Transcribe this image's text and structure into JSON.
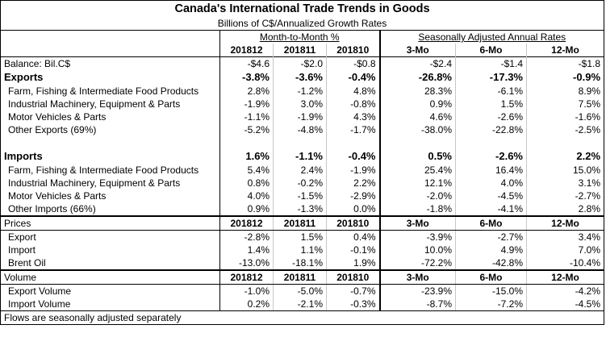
{
  "title": "Canada's International Trade Trends in Goods",
  "subtitle": "Billions of C$/Annualized Growth Rates",
  "group_mtm": "Month-to-Month %",
  "group_saar": "Seasonally Adjusted Annual Rates",
  "columns": [
    "201812",
    "201811",
    "201810",
    "3-Mo",
    "6-Mo",
    "12-Mo"
  ],
  "balance": {
    "label": "Balance: Bil.C$",
    "values": [
      "-$4.6",
      "-$2.0",
      "-$0.8",
      "-$2.4",
      "-$1.4",
      "-$1.8"
    ]
  },
  "exports": {
    "label": "Exports",
    "values": [
      "-3.8%",
      "-3.6%",
      "-0.4%",
      "-26.8%",
      "-17.3%",
      "-0.9%"
    ],
    "rows": [
      {
        "label": "Farm, Fishing & Intermediate Food Products",
        "values": [
          "2.8%",
          "-1.2%",
          "4.8%",
          "28.3%",
          "-6.1%",
          "8.9%"
        ]
      },
      {
        "label": "Industrial Machinery, Equipment & Parts",
        "values": [
          "-1.9%",
          "3.0%",
          "-0.8%",
          "0.9%",
          "1.5%",
          "7.5%"
        ]
      },
      {
        "label": "Motor Vehicles & Parts",
        "values": [
          "-1.1%",
          "-1.9%",
          "4.3%",
          "4.6%",
          "-2.6%",
          "-1.6%"
        ]
      },
      {
        "label": "Other Exports (69%)",
        "values": [
          "-5.2%",
          "-4.8%",
          "-1.7%",
          "-38.0%",
          "-22.8%",
          "-2.5%"
        ]
      }
    ]
  },
  "imports": {
    "label": "Imports",
    "values": [
      "1.6%",
      "-1.1%",
      "-0.4%",
      "0.5%",
      "-2.6%",
      "2.2%"
    ],
    "rows": [
      {
        "label": "Farm, Fishing & Intermediate Food Products",
        "values": [
          "5.4%",
          "2.4%",
          "-1.9%",
          "25.4%",
          "16.4%",
          "15.0%"
        ]
      },
      {
        "label": "Industrial Machinery, Equipment & Parts",
        "values": [
          "0.8%",
          "-0.2%",
          "2.2%",
          "12.1%",
          "4.0%",
          "3.1%"
        ]
      },
      {
        "label": "Motor Vehicles & Parts",
        "values": [
          "4.0%",
          "-1.5%",
          "-2.9%",
          "-2.0%",
          "-4.5%",
          "-2.7%"
        ]
      },
      {
        "label": "Other Imports (66%)",
        "values": [
          "0.9%",
          "-1.3%",
          "0.0%",
          "-1.8%",
          "-4.1%",
          "2.8%"
        ]
      }
    ]
  },
  "prices": {
    "label": "Prices",
    "columns": [
      "201812",
      "201811",
      "201810",
      "3-Mo",
      "6-Mo",
      "12-Mo"
    ],
    "rows": [
      {
        "label": "Export",
        "values": [
          "-2.8%",
          "1.5%",
          "0.4%",
          "-3.9%",
          "-2.7%",
          "3.4%"
        ]
      },
      {
        "label": "Import",
        "values": [
          "1.4%",
          "1.1%",
          "-0.1%",
          "10.0%",
          "4.9%",
          "7.0%"
        ]
      },
      {
        "label": "Brent Oil",
        "values": [
          "-13.0%",
          "-18.1%",
          "1.9%",
          "-72.2%",
          "-42.8%",
          "-10.4%"
        ]
      }
    ]
  },
  "volume": {
    "label": "Volume",
    "columns": [
      "201812",
      "201811",
      "201810",
      "3-Mo",
      "6-Mo",
      "12-Mo"
    ],
    "rows": [
      {
        "label": "Export Volume",
        "values": [
          "-1.0%",
          "-5.0%",
          "-0.7%",
          "-23.9%",
          "-15.0%",
          "-4.2%"
        ]
      },
      {
        "label": "Import Volume",
        "values": [
          "0.2%",
          "-2.1%",
          "-0.3%",
          "-8.7%",
          "-7.2%",
          "-4.5%"
        ]
      }
    ]
  },
  "footnote": "Flows are seasonally adjusted separately"
}
